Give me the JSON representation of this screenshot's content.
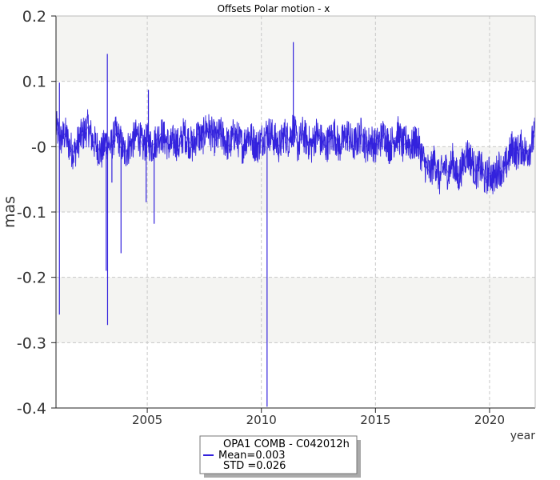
{
  "chart_data": {
    "type": "line",
    "title": "Offsets Polar motion - x",
    "xlabel": "year",
    "ylabel": "mas",
    "xlim": [
      2001.0,
      2022.0
    ],
    "ylim": [
      -0.4,
      0.2
    ],
    "xticks": [
      2005,
      2010,
      2015,
      2020
    ],
    "xtick_labels": [
      "2005",
      "2010",
      "2015",
      "2020"
    ],
    "yticks": [
      0.2,
      0.1,
      0.0,
      -0.1,
      -0.2,
      -0.3,
      -0.4
    ],
    "ytick_labels": [
      "0.2",
      "0.1",
      "-0",
      "-0.1",
      "-0.2",
      "-0.3",
      "-0.4"
    ],
    "grid": true,
    "bands": [
      {
        "from": 0.1,
        "to": 0.2
      },
      {
        "from": -0.1,
        "to": 0.0
      },
      {
        "from": -0.3,
        "to": -0.2
      }
    ],
    "legend": {
      "placement": "bottom-center",
      "title": "OPA1 COMB - C042012h",
      "mean_label": "Mean=0.003",
      "std_label": "STD =0.026"
    },
    "series": [
      {
        "color": "#3322dd",
        "x": [
          2001.0,
          2001.1,
          2001.2,
          2001.4,
          2001.6,
          2001.8,
          2002.0,
          2002.2,
          2002.4,
          2002.6,
          2002.8,
          2003.0,
          2003.2,
          2003.4,
          2003.6,
          2003.8,
          2004.0,
          2004.2,
          2004.4,
          2004.6,
          2004.8,
          2005.0,
          2005.2,
          2005.4,
          2005.6,
          2005.8,
          2006.0,
          2006.2,
          2006.4,
          2006.6,
          2006.8,
          2007.0,
          2007.2,
          2007.4,
          2007.6,
          2007.8,
          2008.0,
          2008.2,
          2008.4,
          2008.6,
          2008.8,
          2009.0,
          2009.2,
          2009.4,
          2009.6,
          2009.8,
          2010.0,
          2010.2,
          2010.4,
          2010.6,
          2010.8,
          2011.0,
          2011.2,
          2011.4,
          2011.6,
          2011.8,
          2012.0,
          2012.2,
          2012.4,
          2012.6,
          2012.8,
          2013.0,
          2013.2,
          2013.4,
          2013.6,
          2013.8,
          2014.0,
          2014.2,
          2014.4,
          2014.6,
          2014.8,
          2015.0,
          2015.2,
          2015.4,
          2015.6,
          2015.8,
          2016.0,
          2016.2,
          2016.4,
          2016.6,
          2016.8,
          2017.0,
          2017.2,
          2017.4,
          2017.6,
          2017.8,
          2018.0,
          2018.2,
          2018.4,
          2018.6,
          2018.8,
          2019.0,
          2019.2,
          2019.4,
          2019.6,
          2019.8,
          2020.0,
          2020.2,
          2020.4,
          2020.6,
          2020.8,
          2021.0,
          2021.2,
          2021.4,
          2021.6,
          2021.8,
          2022.0
        ],
        "y": [
          0.03,
          0.02,
          0.01,
          0.02,
          0.0,
          -0.01,
          0.01,
          0.02,
          0.03,
          0.01,
          0.0,
          -0.01,
          0.01,
          0.0,
          0.02,
          0.01,
          -0.01,
          0.0,
          0.01,
          0.02,
          0.0,
          0.01,
          0.0,
          0.01,
          0.02,
          0.01,
          0.0,
          0.01,
          0.0,
          0.02,
          0.01,
          0.0,
          0.02,
          0.01,
          0.03,
          0.02,
          0.01,
          0.02,
          0.01,
          0.0,
          0.02,
          0.01,
          0.0,
          0.02,
          0.01,
          0.0,
          0.01,
          0.02,
          0.02,
          0.01,
          0.0,
          0.02,
          0.01,
          0.03,
          0.0,
          0.02,
          0.01,
          0.0,
          0.02,
          0.01,
          0.0,
          0.01,
          0.02,
          0.0,
          0.01,
          0.02,
          0.0,
          0.01,
          0.02,
          0.0,
          0.01,
          0.0,
          0.01,
          0.02,
          0.0,
          0.01,
          0.02,
          0.0,
          0.01,
          0.0,
          0.01,
          -0.01,
          -0.03,
          -0.04,
          -0.02,
          -0.05,
          -0.03,
          -0.04,
          -0.02,
          -0.05,
          -0.03,
          -0.01,
          -0.02,
          -0.04,
          -0.03,
          -0.05,
          -0.04,
          -0.05,
          -0.03,
          -0.04,
          -0.02,
          0.0,
          -0.01,
          0.0,
          -0.01,
          0.0,
          0.02
        ],
        "spikes": [
          {
            "x": 2001.15,
            "y": -0.257
          },
          {
            "x": 2001.15,
            "y": 0.098
          },
          {
            "x": 2003.25,
            "y": 0.142
          },
          {
            "x": 2003.2,
            "y": -0.19
          },
          {
            "x": 2003.26,
            "y": -0.273
          },
          {
            "x": 2003.45,
            "y": -0.055
          },
          {
            "x": 2003.85,
            "y": -0.163
          },
          {
            "x": 2004.95,
            "y": -0.085
          },
          {
            "x": 2005.05,
            "y": 0.087
          },
          {
            "x": 2005.3,
            "y": -0.118
          },
          {
            "x": 2010.25,
            "y": -0.398
          },
          {
            "x": 2011.4,
            "y": 0.16
          }
        ]
      }
    ]
  }
}
